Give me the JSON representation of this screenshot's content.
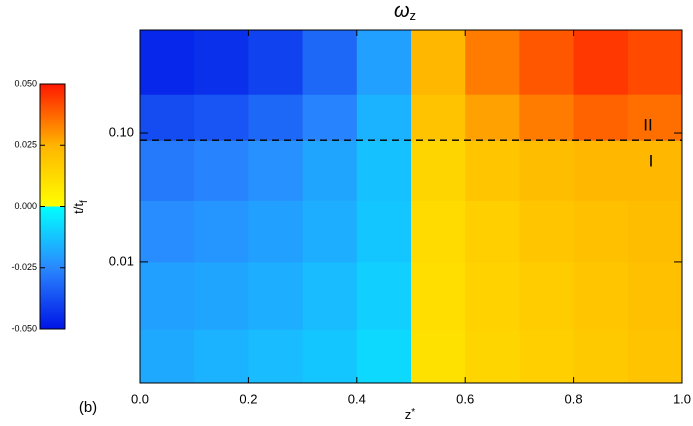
{
  "chart_data": {
    "type": "heatmap",
    "title": {
      "symbol": "ω",
      "subscript": "z"
    },
    "xlabel": {
      "symbol": "z",
      "superscript": "*"
    },
    "ylabel": {
      "symbol": "t/t",
      "subscript": "f"
    },
    "panel_label": "(b)",
    "annotations": [
      "II",
      "I"
    ],
    "xbins": [
      0.0,
      0.1,
      0.2,
      0.3,
      0.4,
      0.5,
      0.6,
      0.7,
      0.8,
      0.9,
      1.0
    ],
    "ybins": [
      0.00115,
      0.003,
      0.01,
      0.03,
      0.088,
      0.2,
      0.63
    ],
    "z": [
      [
        -0.018,
        -0.016,
        -0.014,
        -0.012,
        -0.008,
        0.01,
        0.014,
        0.016,
        0.018,
        0.02
      ],
      [
        -0.02,
        -0.019,
        -0.017,
        -0.014,
        -0.01,
        0.011,
        0.015,
        0.017,
        0.019,
        0.021
      ],
      [
        -0.024,
        -0.022,
        -0.02,
        -0.017,
        -0.012,
        0.012,
        0.016,
        0.019,
        0.021,
        0.022
      ],
      [
        -0.028,
        -0.026,
        -0.023,
        -0.019,
        -0.013,
        0.014,
        0.019,
        0.022,
        0.024,
        0.024
      ],
      [
        -0.038,
        -0.036,
        -0.032,
        -0.026,
        -0.016,
        0.02,
        0.028,
        0.034,
        0.038,
        0.036
      ],
      [
        -0.046,
        -0.044,
        -0.04,
        -0.032,
        -0.02,
        0.024,
        0.034,
        0.04,
        0.045,
        0.042
      ]
    ],
    "xlim": [
      0.0,
      1.0
    ],
    "xticks": [
      {
        "value": 0.0,
        "label": "0.0"
      },
      0.2,
      0.4,
      0.6,
      0.8,
      {
        "value": 1.0,
        "label": "1.0"
      }
    ],
    "ylim": [
      0.00115,
      0.63
    ],
    "yscale": "log",
    "yticks": [
      {
        "value": 0.01,
        "label": "0.01"
      },
      {
        "value": 0.1,
        "label": "0.10"
      }
    ],
    "hline": 0.088,
    "colorbar_lim": [
      -0.05,
      0.05
    ],
    "colorbar_ticks": [
      {
        "value": -0.05,
        "label": "-0.050"
      },
      {
        "value": -0.025,
        "label": "-0.025"
      },
      {
        "value": 0.0,
        "label": "0.000"
      },
      {
        "value": 0.025,
        "label": "0.025"
      },
      {
        "value": 0.05,
        "label": "0.050"
      }
    ],
    "colorscale": [
      {
        "value": -0.05,
        "color": "#0014e6"
      },
      {
        "value": -0.025,
        "color": "#2a88ff"
      },
      {
        "value": 0.0,
        "color": "#00ffff"
      },
      {
        "value": 0.0,
        "color": "#ffff00"
      },
      {
        "value": 0.025,
        "color": "#ffb400"
      },
      {
        "value": 0.05,
        "color": "#ff1800"
      }
    ]
  }
}
